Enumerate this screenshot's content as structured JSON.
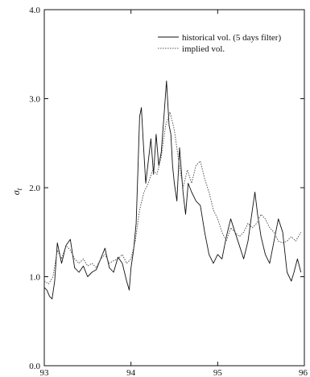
{
  "chart_data": {
    "type": "line",
    "title": "",
    "xlabel": "",
    "ylabel": "σ_t",
    "ylabel_main": "σ",
    "ylabel_sub": "t",
    "xlim": [
      93,
      96
    ],
    "ylim": [
      0.0,
      4.0
    ],
    "x_ticks": [
      93,
      94,
      95,
      96
    ],
    "x_tick_labels": [
      "93",
      "94",
      "95",
      "96"
    ],
    "y_ticks": [
      0.0,
      1.0,
      2.0,
      3.0,
      4.0
    ],
    "y_tick_labels": [
      "0.0",
      "1.0",
      "2.0",
      "3.0",
      "4.0"
    ],
    "grid": false,
    "legend_position": "top-right",
    "series": [
      {
        "name": "historical vol. (5 days filter)",
        "style": "solid",
        "color": "#111111",
        "x": [
          93.0,
          93.03,
          93.06,
          93.09,
          93.12,
          93.15,
          93.2,
          93.25,
          93.3,
          93.35,
          93.4,
          93.45,
          93.5,
          93.55,
          93.6,
          93.65,
          93.7,
          93.75,
          93.8,
          93.85,
          93.9,
          93.95,
          93.98,
          94.0,
          94.03,
          94.06,
          94.08,
          94.1,
          94.12,
          94.14,
          94.17,
          94.2,
          94.23,
          94.26,
          94.29,
          94.32,
          94.35,
          94.38,
          94.41,
          94.44,
          94.46,
          94.48,
          94.5,
          94.53,
          94.56,
          94.6,
          94.63,
          94.66,
          94.7,
          94.75,
          94.8,
          94.85,
          94.9,
          94.95,
          95.0,
          95.05,
          95.1,
          95.15,
          95.2,
          95.25,
          95.3,
          95.35,
          95.4,
          95.43,
          95.46,
          95.5,
          95.55,
          95.6,
          95.65,
          95.7,
          95.75,
          95.8,
          95.85,
          95.88,
          95.92,
          95.96
        ],
        "y": [
          0.88,
          0.85,
          0.78,
          0.75,
          0.95,
          1.38,
          1.15,
          1.35,
          1.42,
          1.1,
          1.05,
          1.12,
          1.0,
          1.05,
          1.08,
          1.2,
          1.32,
          1.1,
          1.05,
          1.22,
          1.15,
          0.95,
          0.85,
          1.1,
          1.3,
          1.6,
          2.2,
          2.8,
          2.9,
          2.55,
          2.05,
          2.3,
          2.55,
          2.15,
          2.6,
          2.25,
          2.4,
          2.8,
          3.2,
          2.7,
          2.6,
          2.25,
          2.05,
          1.85,
          2.45,
          1.95,
          1.7,
          2.05,
          1.95,
          1.85,
          1.8,
          1.5,
          1.25,
          1.15,
          1.25,
          1.2,
          1.45,
          1.65,
          1.5,
          1.35,
          1.2,
          1.4,
          1.75,
          1.95,
          1.7,
          1.45,
          1.25,
          1.15,
          1.4,
          1.65,
          1.5,
          1.05,
          0.95,
          1.05,
          1.2,
          1.05
        ]
      },
      {
        "name": "implied vol.",
        "style": "dotted",
        "color": "#555555",
        "x": [
          93.0,
          93.05,
          93.1,
          93.15,
          93.2,
          93.25,
          93.3,
          93.35,
          93.4,
          93.45,
          93.5,
          93.55,
          93.6,
          93.65,
          93.7,
          93.75,
          93.8,
          93.85,
          93.9,
          93.95,
          94.0,
          94.05,
          94.1,
          94.15,
          94.2,
          94.25,
          94.3,
          94.35,
          94.4,
          94.45,
          94.5,
          94.55,
          94.6,
          94.65,
          94.7,
          94.75,
          94.8,
          94.85,
          94.9,
          94.95,
          95.0,
          95.05,
          95.1,
          95.15,
          95.2,
          95.25,
          95.3,
          95.35,
          95.4,
          95.45,
          95.5,
          95.55,
          95.6,
          95.65,
          95.7,
          95.75,
          95.8,
          95.85,
          95.9,
          95.96
        ],
        "y": [
          0.95,
          0.92,
          1.0,
          1.3,
          1.2,
          1.35,
          1.3,
          1.2,
          1.15,
          1.2,
          1.12,
          1.15,
          1.1,
          1.2,
          1.25,
          1.15,
          1.18,
          1.2,
          1.25,
          1.15,
          1.2,
          1.4,
          1.75,
          1.95,
          2.05,
          2.2,
          2.15,
          2.35,
          2.7,
          2.85,
          2.65,
          2.3,
          2.0,
          2.2,
          2.05,
          2.25,
          2.3,
          2.1,
          1.95,
          1.75,
          1.65,
          1.5,
          1.4,
          1.55,
          1.5,
          1.45,
          1.5,
          1.6,
          1.55,
          1.6,
          1.7,
          1.65,
          1.55,
          1.5,
          1.4,
          1.38,
          1.4,
          1.45,
          1.4,
          1.5
        ]
      }
    ]
  }
}
